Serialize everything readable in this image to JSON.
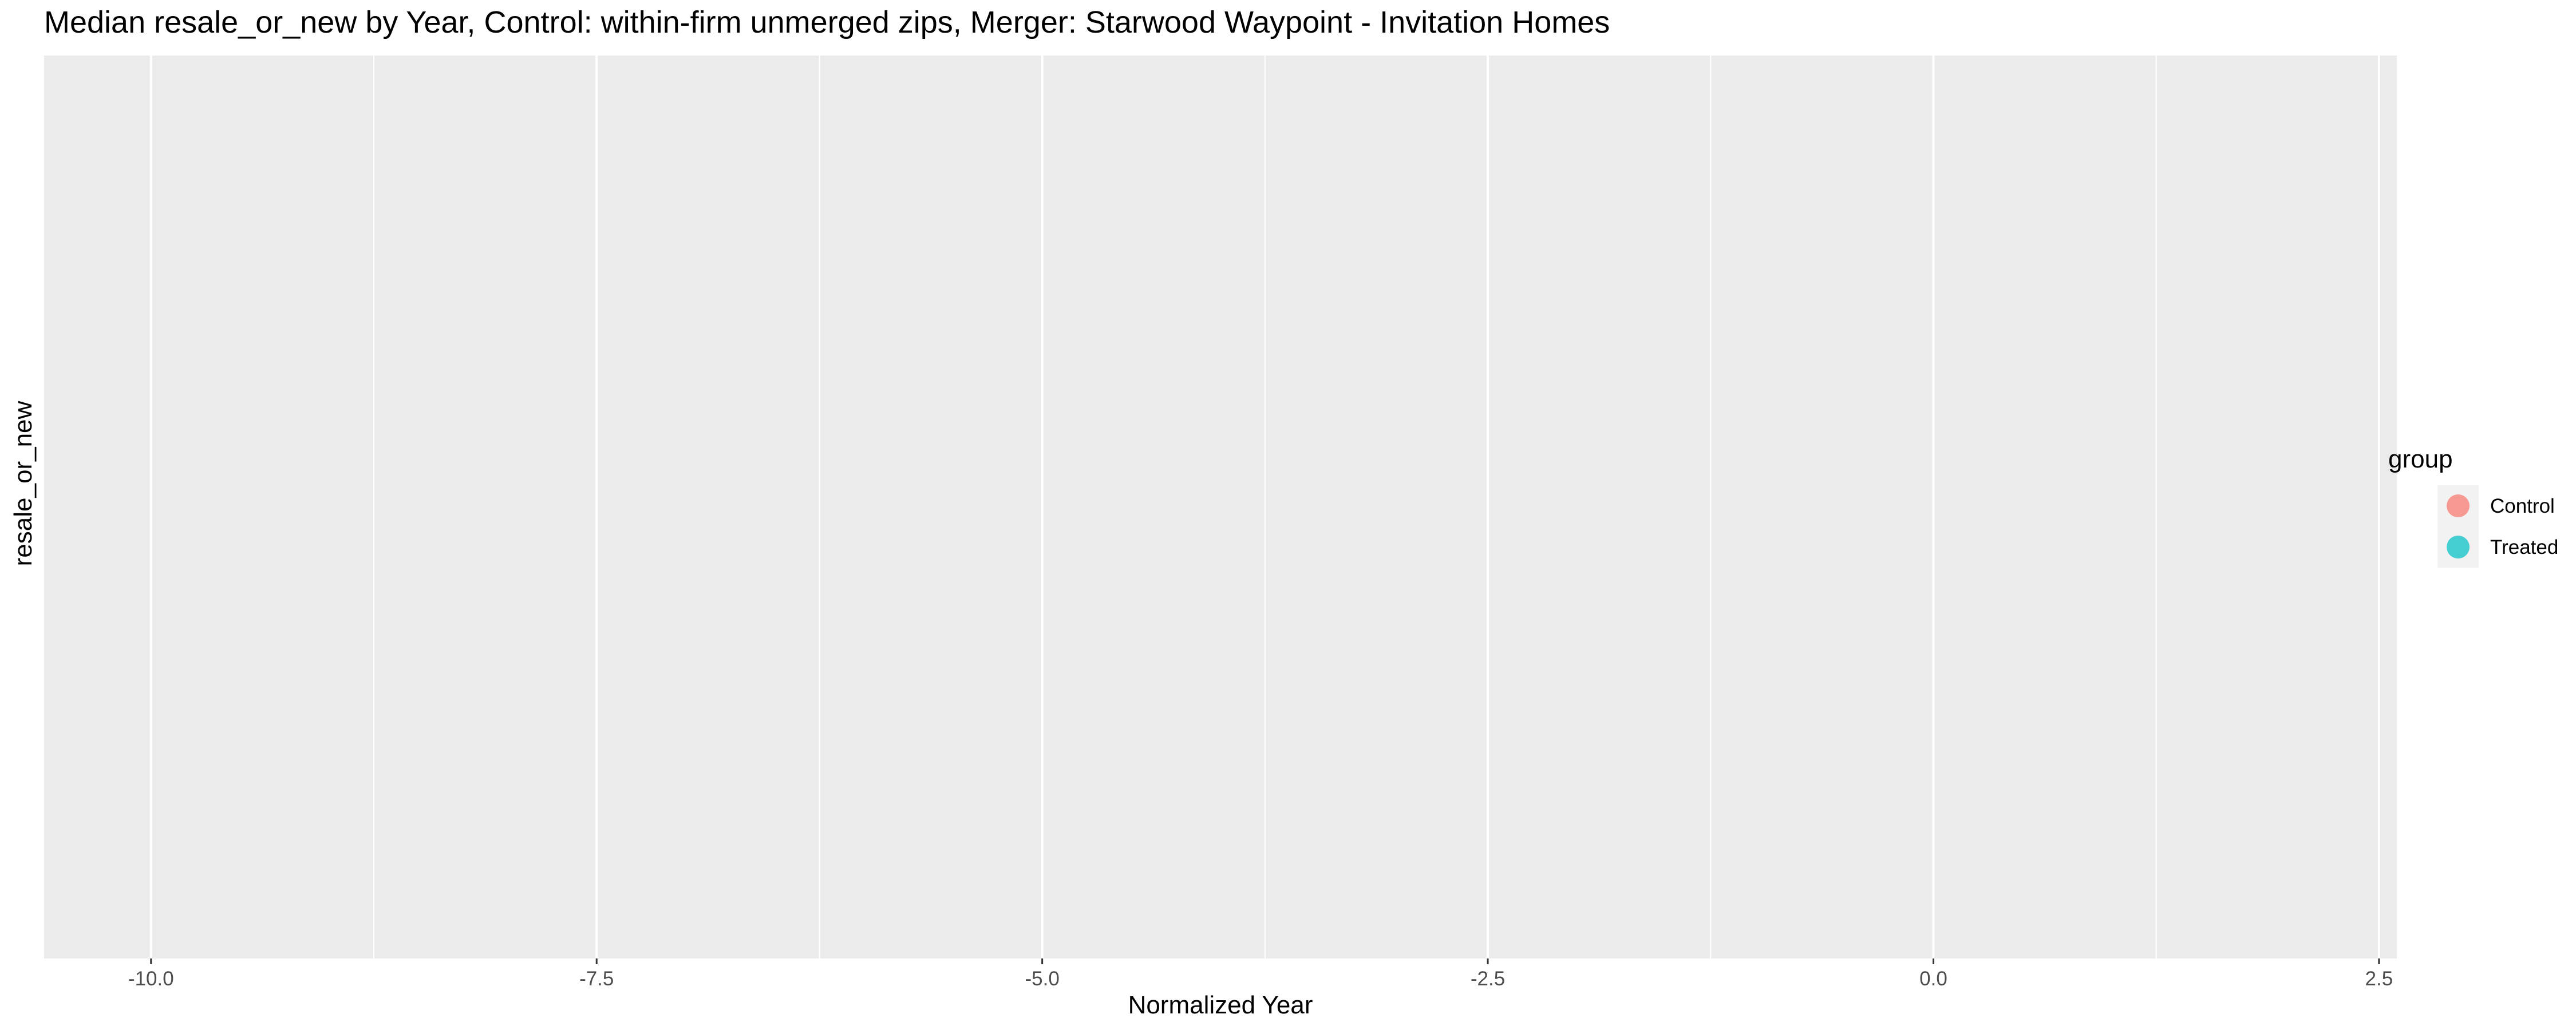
{
  "chart_data": {
    "type": "scatter",
    "title": "Median resale_or_new by Year, Control: within-firm unmerged zips, Merger: Starwood Waypoint - Invitation Homes",
    "xlabel": "Normalized Year",
    "ylabel": "resale_or_new",
    "xlim": [
      -10.6,
      2.6
    ],
    "x_ticks": [
      -10.0,
      -7.5,
      -5.0,
      -2.5,
      0.0,
      2.5
    ],
    "x_tick_labels": [
      "-10.0",
      "-7.5",
      "-5.0",
      "-2.5",
      "0.0",
      "2.5"
    ],
    "x_minor_ticks": [
      -8.75,
      -6.25,
      -3.75,
      -1.25,
      1.25
    ],
    "y_ticks": [],
    "grid": true,
    "panel_background": "#ebebeb",
    "grid_color": "#ffffff",
    "legend": {
      "title": "group",
      "position": "right",
      "entries": [
        {
          "label": "Control",
          "color": "#f8766d"
        },
        {
          "label": "Treated",
          "color": "#00bfc4"
        }
      ]
    },
    "series": [
      {
        "name": "Control",
        "color": "#f8766d",
        "points": []
      },
      {
        "name": "Treated",
        "color": "#00bfc4",
        "points": []
      }
    ]
  }
}
